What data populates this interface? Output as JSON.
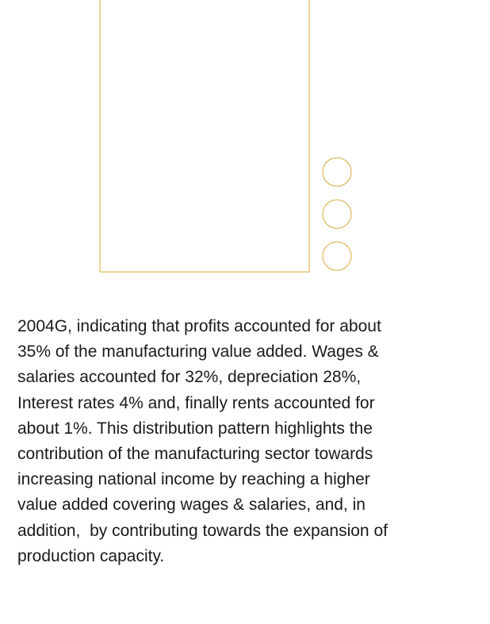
{
  "paragraph": {
    "lines": [
      "2004G, indicating that profits accounted for about",
      "35% of the manufacturing value added. Wages &",
      "salaries accounted for 32%, depreciation 28%,",
      "Interest rates 4% and, finally rents accounted for",
      "about 1%. This distribution pattern highlights the",
      "contribution of the manufacturing sector towards",
      "increasing national income by reaching a higher",
      "value added covering wages & salaries, and, in",
      "addition,  by contributing towards the expansion of",
      "production capacity."
    ]
  }
}
